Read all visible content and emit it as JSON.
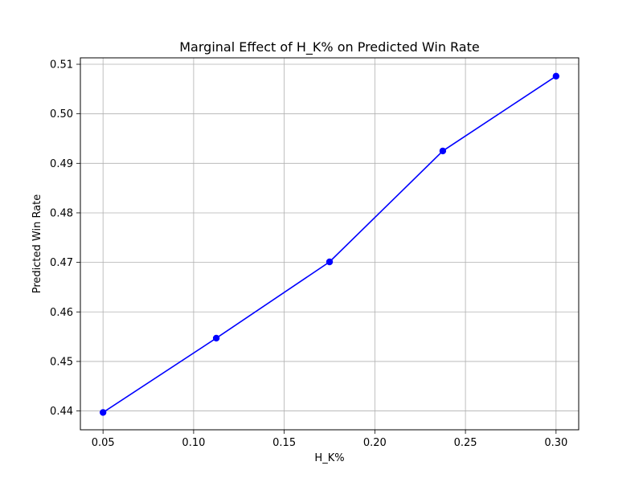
{
  "chart_data": {
    "type": "line",
    "title": "Marginal Effect of H_K% on Predicted Win Rate",
    "xlabel": "H_K%",
    "ylabel": "Predicted Win Rate",
    "xlim": [
      0.0375,
      0.3125
    ],
    "ylim": [
      0.4362,
      0.5113
    ],
    "x_ticks": [
      0.05,
      0.1,
      0.15,
      0.2,
      0.25,
      0.3
    ],
    "x_tick_labels": [
      "0.05",
      "0.10",
      "0.15",
      "0.20",
      "0.25",
      "0.30"
    ],
    "y_ticks": [
      0.44,
      0.45,
      0.46,
      0.47,
      0.48,
      0.49,
      0.5,
      0.51
    ],
    "y_tick_labels": [
      "0.44",
      "0.45",
      "0.46",
      "0.47",
      "0.48",
      "0.49",
      "0.50",
      "0.51"
    ],
    "grid": true,
    "legend": "none",
    "series": [
      {
        "color": "#0000ff",
        "marker": "circle",
        "x": [
          0.05,
          0.1125,
          0.175,
          0.2375,
          0.3
        ],
        "y": [
          0.4397,
          0.4547,
          0.4701,
          0.4925,
          0.5076
        ]
      }
    ]
  }
}
